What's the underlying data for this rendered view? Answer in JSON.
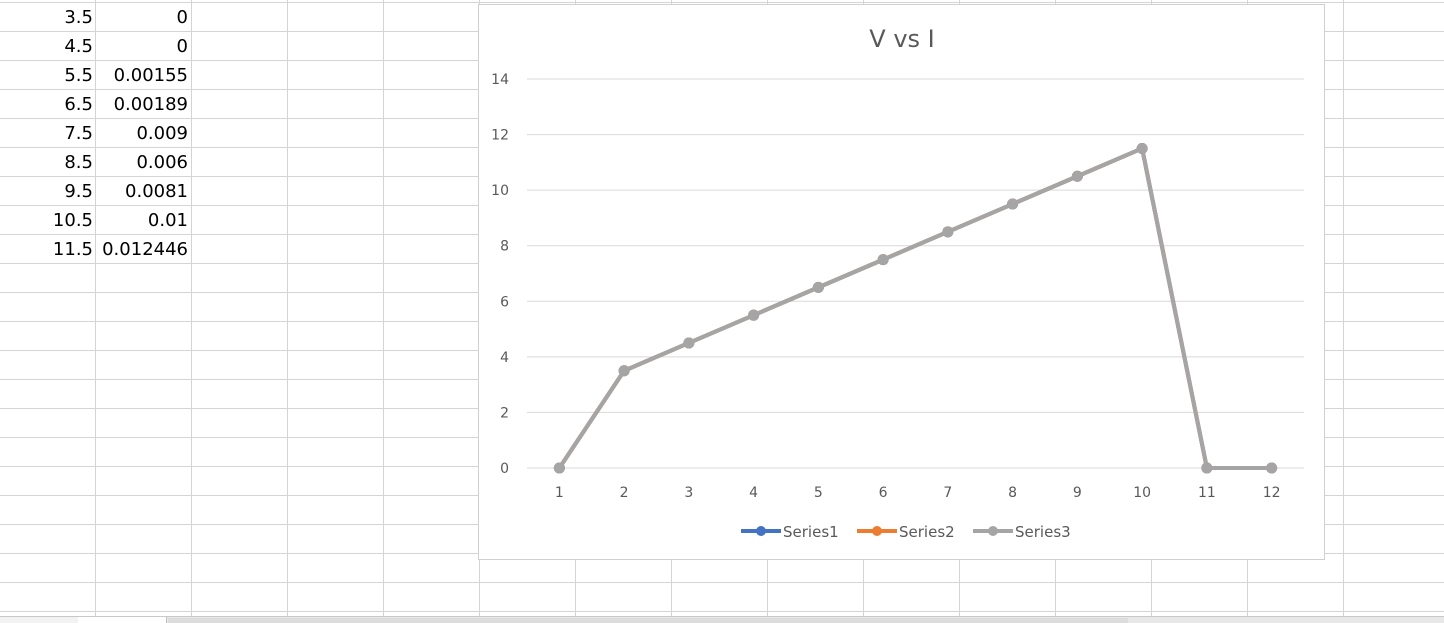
{
  "sheet": {
    "col_a": [
      "3.5",
      "4.5",
      "5.5",
      "6.5",
      "7.5",
      "8.5",
      "9.5",
      "10.5",
      "11.5"
    ],
    "col_b": [
      "0",
      "0",
      "0.00155",
      "0.00189",
      "0.009",
      "0.006",
      "0.0081",
      "0.01",
      "0.012446"
    ]
  },
  "chart_data": {
    "type": "line",
    "title": "V vs I",
    "categories": [
      "1",
      "2",
      "3",
      "4",
      "5",
      "6",
      "7",
      "8",
      "9",
      "10",
      "11",
      "12"
    ],
    "ylim": [
      0,
      14
    ],
    "yticks": [
      "0",
      "2",
      "4",
      "6",
      "8",
      "10",
      "12",
      "14"
    ],
    "grid": true,
    "legend_position": "bottom",
    "series": [
      {
        "name": "Series1",
        "color": "#4472c4",
        "values": [
          0,
          3.5,
          4.5,
          5.5,
          6.5,
          7.5,
          8.5,
          9.5,
          10.5,
          11.5,
          0,
          0
        ]
      },
      {
        "name": "Series2",
        "color": "#ed7d31",
        "values": [
          0,
          3.5,
          4.5,
          5.5,
          6.5,
          7.5,
          8.5,
          9.5,
          10.5,
          11.5,
          0,
          0
        ]
      },
      {
        "name": "Series3",
        "color": "#a5a5a5",
        "values": [
          0,
          3.5,
          4.5,
          5.5,
          6.5,
          7.5,
          8.5,
          9.5,
          10.5,
          11.5,
          0,
          0
        ]
      }
    ]
  }
}
